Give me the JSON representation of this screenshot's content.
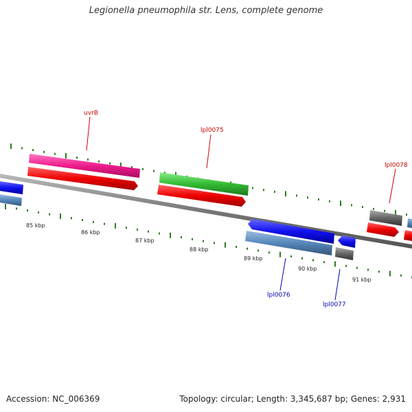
{
  "title": "Legionella pneumophila str. Lens, complete genome",
  "accession_text": "Accession: NC_006369",
  "summary_text": "Topology: circular; Length: 3,345,687 bp; Genes: 2,931",
  "colors": {
    "backbone": "#7a7a7a",
    "tick": "#2e7d1e",
    "label_top": "#cc0000",
    "label_bottom": "#0000bb",
    "pink": "#ee1c8c",
    "red": "#ee0000",
    "green": "#33bb33",
    "blue": "#1111ee",
    "steelblue": "#5588bb",
    "gray": "#555555"
  },
  "tick_labels": [
    "85 kbp",
    "86 kbp",
    "87 kbp",
    "88 kbp",
    "89 kbp",
    "90 kbp",
    "91 kbp"
  ],
  "gene_labels": {
    "uvrB": "uvrB",
    "lpl0075": "lpl0075",
    "lpl0078": "lpl0078",
    "lpl0076": "lpl0076",
    "lpl0077": "lpl0077"
  }
}
